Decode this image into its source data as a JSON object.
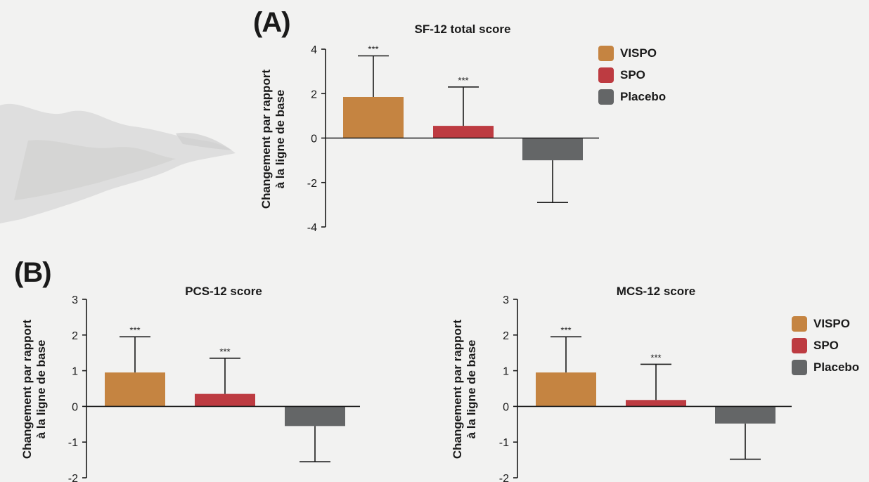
{
  "panels": {
    "a_label": "(A)",
    "b_label": "(B)"
  },
  "legend": {
    "items": [
      {
        "label": "VISPO",
        "color": "#c58441"
      },
      {
        "label": "SPO",
        "color": "#bd3b41"
      },
      {
        "label": "Placebo",
        "color": "#646667"
      }
    ]
  },
  "chart_data": [
    {
      "id": "sf12",
      "type": "bar",
      "title": "SF-12 total score",
      "ylabel": "Changement par rapport\nà la ligne de base",
      "categories": [
        "VISPO",
        "SPO",
        "Placebo"
      ],
      "values": [
        1.85,
        0.55,
        -1.0
      ],
      "error_bars": [
        1.85,
        1.75,
        1.9
      ],
      "significance": [
        "***",
        "***",
        ""
      ],
      "colors": [
        "#c58441",
        "#bd3b41",
        "#646667"
      ],
      "ylim": [
        -4,
        4
      ],
      "yticks": [
        4,
        2,
        0,
        -2,
        -4
      ],
      "legend_position": "top-right"
    },
    {
      "id": "pcs12",
      "type": "bar",
      "title": "PCS-12 score",
      "ylabel": "Changement par rapport\nà la ligne de base",
      "categories": [
        "VISPO",
        "SPO",
        "Placebo"
      ],
      "values": [
        0.95,
        0.35,
        -0.55
      ],
      "error_bars": [
        1.0,
        1.0,
        1.0
      ],
      "significance": [
        "***",
        "***",
        ""
      ],
      "colors": [
        "#c58441",
        "#bd3b41",
        "#646667"
      ],
      "ylim": [
        -2,
        3
      ],
      "yticks": [
        3,
        2,
        1,
        0,
        -1,
        -2
      ]
    },
    {
      "id": "mcs12",
      "type": "bar",
      "title": "MCS-12 score",
      "ylabel": "Changement par rapport\nà la ligne de base",
      "categories": [
        "VISPO",
        "SPO",
        "Placebo"
      ],
      "values": [
        0.95,
        0.18,
        -0.48
      ],
      "error_bars": [
        1.0,
        1.0,
        1.0
      ],
      "significance": [
        "***",
        "***",
        ""
      ],
      "colors": [
        "#c58441",
        "#bd3b41",
        "#646667"
      ],
      "ylim": [
        -2,
        3
      ],
      "yticks": [
        3,
        2,
        1,
        0,
        -1,
        -2
      ],
      "legend_position": "right"
    }
  ]
}
